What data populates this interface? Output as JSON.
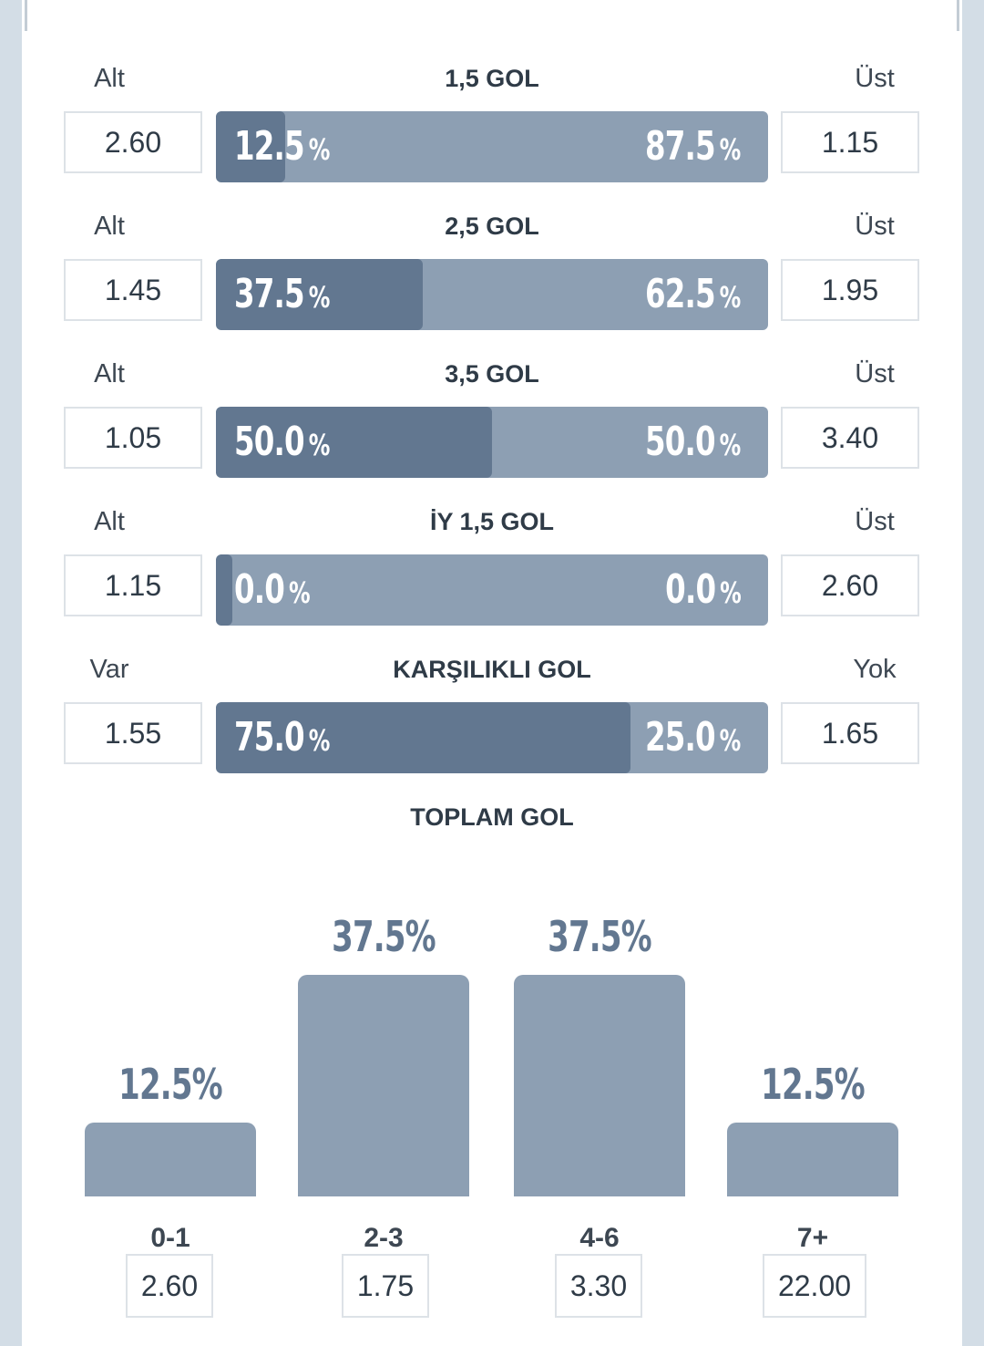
{
  "markets": [
    {
      "title": "1,5 GOL",
      "left_label": "Alt",
      "right_label": "Üst",
      "left_odd": "2.60",
      "right_odd": "1.15",
      "left_pct": "12.5",
      "right_pct": "87.5",
      "fill": 0.125
    },
    {
      "title": "2,5 GOL",
      "left_label": "Alt",
      "right_label": "Üst",
      "left_odd": "1.45",
      "right_odd": "1.95",
      "left_pct": "37.5",
      "right_pct": "62.5",
      "fill": 0.375
    },
    {
      "title": "3,5 GOL",
      "left_label": "Alt",
      "right_label": "Üst",
      "left_odd": "1.05",
      "right_odd": "3.40",
      "left_pct": "50.0",
      "right_pct": "50.0",
      "fill": 0.5
    },
    {
      "title": "İY 1,5 GOL",
      "left_label": "Alt",
      "right_label": "Üst",
      "left_odd": "1.15",
      "right_odd": "2.60",
      "left_pct": "0.0",
      "right_pct": "0.0",
      "fill": 0.0
    },
    {
      "title": "KARŞILIKLI GOL",
      "left_label": "Var",
      "right_label": "Yok",
      "left_odd": "1.55",
      "right_odd": "1.65",
      "left_pct": "75.0",
      "right_pct": "25.0",
      "fill": 0.75
    }
  ],
  "percent_sign": "%",
  "total_goals": {
    "title": "TOPLAM GOL",
    "buckets": [
      {
        "label": "0-1",
        "pct": "12.5%",
        "value": 12.5,
        "odd": "2.60"
      },
      {
        "label": "2-3",
        "pct": "37.5%",
        "value": 37.5,
        "odd": "1.75"
      },
      {
        "label": "4-6",
        "pct": "37.5%",
        "value": 37.5,
        "odd": "3.30"
      },
      {
        "label": "7+",
        "pct": "12.5%",
        "value": 12.5,
        "odd": "22.00"
      }
    ]
  },
  "colors": {
    "bar_track": "#8d9fb3",
    "bar_fill": "#627790",
    "background": "#d3dde6"
  }
}
